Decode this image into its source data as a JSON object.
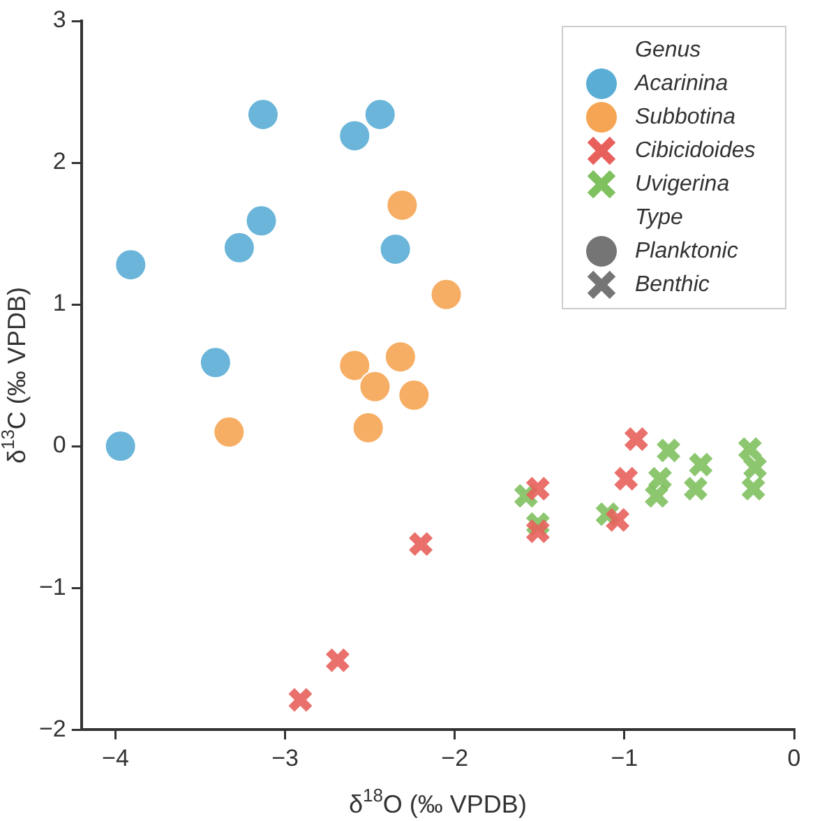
{
  "chart_data": {
    "type": "scatter",
    "xlabel": "δ$^{18}$O (‰ VPDB)",
    "ylabel": "δ$^{13}$C (‰ VPDB)",
    "legend_title": "Genus",
    "annotations": [
      "Type"
    ],
    "legend": "top right",
    "grid": false,
    "xlim": [
      -4.2,
      0
    ],
    "xticks": [
      -4,
      -3,
      -2,
      -1,
      0
    ],
    "ylim": [
      -2,
      3
    ],
    "yticks": [
      -2,
      -1,
      0,
      1,
      2,
      3
    ],
    "series": [
      {
        "name": "Acarinina",
        "color": "#5aadd5",
        "marker": "circle",
        "x": [
          -3.97,
          -3.91,
          -3.41,
          -3.27,
          -3.14,
          -3.13,
          -2.59,
          -2.44,
          -2.35
        ],
        "values": [
          0,
          1.28,
          0.59,
          1.4,
          1.59,
          2.34,
          2.19,
          2.34,
          1.39
        ]
      },
      {
        "name": "Subbotina",
        "color": "#f5a553",
        "marker": "circle",
        "x": [
          -3.33,
          -2.59,
          -2.47,
          -2.51,
          -2.32,
          -2.24,
          -2.31,
          -2.05
        ],
        "values": [
          0.1,
          0.57,
          0.42,
          0.13,
          0.63,
          0.36,
          1.7,
          1.07
        ]
      },
      {
        "name": "Cibicidoides",
        "color": "#e8605c",
        "marker": "cross",
        "x": [
          -2.91,
          -2.69,
          -2.2,
          -1.51,
          -1.51,
          -0.93,
          -0.99,
          -1.04
        ],
        "values": [
          -1.79,
          -1.51,
          -0.69,
          -0.3,
          -0.6,
          0.05,
          -0.23,
          -0.52
        ]
      },
      {
        "name": "Uvigerina",
        "color": "#7fc15f",
        "marker": "cross",
        "x": [
          -1.58,
          -1.51,
          -1.1,
          -0.74,
          -0.79,
          -0.81,
          -0.55,
          -0.58,
          -0.26,
          -0.24,
          -0.23
        ],
        "values": [
          -0.35,
          -0.55,
          -0.48,
          -0.03,
          -0.23,
          -0.35,
          -0.13,
          -0.3,
          -0.02,
          -0.3,
          -0.15
        ]
      },
      {
        "name": "Planktonic",
        "color": "#757575",
        "marker": "circle"
      },
      {
        "name": "Benthic",
        "color": "#757575",
        "marker": "cross"
      }
    ]
  }
}
